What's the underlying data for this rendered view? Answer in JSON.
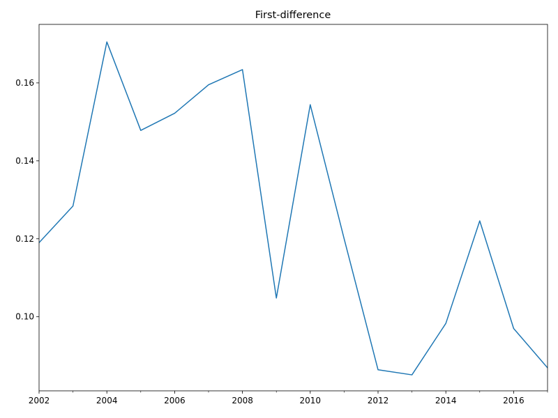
{
  "chart_data": {
    "type": "line",
    "title": "First-difference",
    "xlabel": "",
    "ylabel": "",
    "x": [
      2002,
      2003,
      2004,
      2005,
      2006,
      2007,
      2008,
      2009,
      2010,
      2011,
      2012,
      2013,
      2014,
      2015,
      2016,
      2017
    ],
    "series": [
      {
        "values": [
          0.119,
          0.1284,
          0.1705,
          0.1478,
          0.1522,
          0.1595,
          0.1634,
          0.1048,
          0.1544,
          0.12,
          0.0864,
          0.0851,
          0.0983,
          0.1246,
          0.097,
          0.0869
        ],
        "color": "#1f77b4"
      }
    ],
    "xlim": [
      2002,
      2017
    ],
    "ylim": [
      0.081,
      0.175
    ],
    "x_major_ticks": [
      2002,
      2004,
      2006,
      2008,
      2010,
      2012,
      2014,
      2016
    ],
    "x_minor_ticks": [
      2003,
      2005,
      2007,
      2009,
      2011,
      2013,
      2015,
      2017
    ],
    "y_ticks": [
      0.1,
      0.12,
      0.14,
      0.16
    ],
    "y_tick_labels": [
      "0.10",
      "0.12",
      "0.14",
      "0.16"
    ],
    "grid": false,
    "legend": "none"
  }
}
